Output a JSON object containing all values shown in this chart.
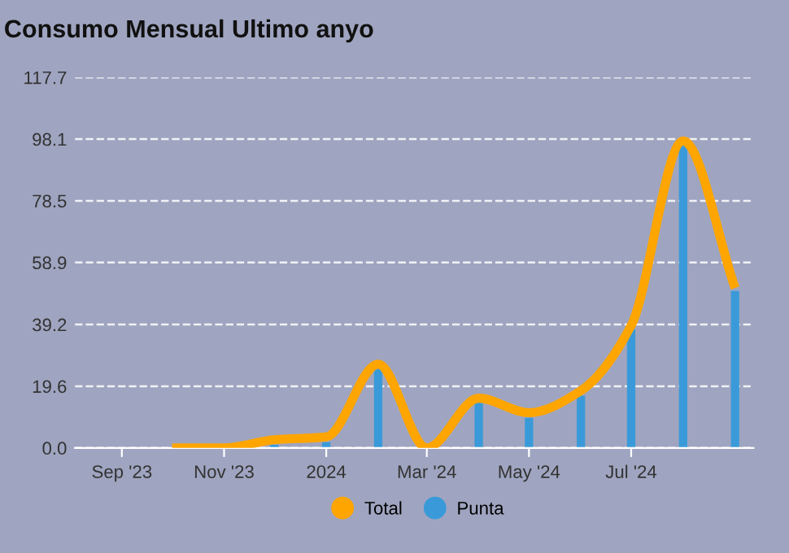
{
  "chart_data": {
    "type": "bar",
    "title": "Consumo Mensual Ultimo anyo",
    "x": [
      "2023-10-01",
      "2023-11-01",
      "2023-12-01",
      "2024-01-01",
      "2024-02-01",
      "2024-03-01",
      "2024-04-01",
      "2024-05-01",
      "2024-06-01",
      "2024-07-01",
      "2024-08-01",
      "2024-09-01"
    ],
    "series": [
      {
        "name": "Total",
        "type": "line",
        "color": "#ffa500",
        "values": [
          0,
          0,
          2.6,
          3.5,
          26.6,
          0,
          15.8,
          11.2,
          18.2,
          38.9,
          97.5,
          50.8
        ]
      },
      {
        "name": "Punta",
        "color": "#3a9ad9",
        "values": [
          0,
          0,
          1,
          1.8,
          25.4,
          0,
          14.5,
          9.6,
          16.6,
          37.7,
          96.3,
          49.9
        ]
      }
    ],
    "xlim": [
      "2023-08-04",
      "2024-09-12"
    ],
    "xticks": [
      {
        "value": "2023-09-01",
        "label": "Sep '23"
      },
      {
        "value": "2023-11-01",
        "label": "Nov '23"
      },
      {
        "value": "2024-01-01",
        "label": "2024"
      },
      {
        "value": "2024-03-01",
        "label": "Mar '24"
      },
      {
        "value": "2024-05-01",
        "label": "May '24"
      },
      {
        "value": "2024-07-01",
        "label": "Jul '24"
      }
    ],
    "ylim": [
      0,
      117.7
    ],
    "yticks": [
      {
        "value": 0,
        "label": "0.0"
      },
      19.6,
      39.2,
      58.9,
      78.5,
      98.1,
      117.7
    ],
    "grid": "y",
    "legend": "bottom",
    "marker": "none",
    "line_style": "solid"
  }
}
